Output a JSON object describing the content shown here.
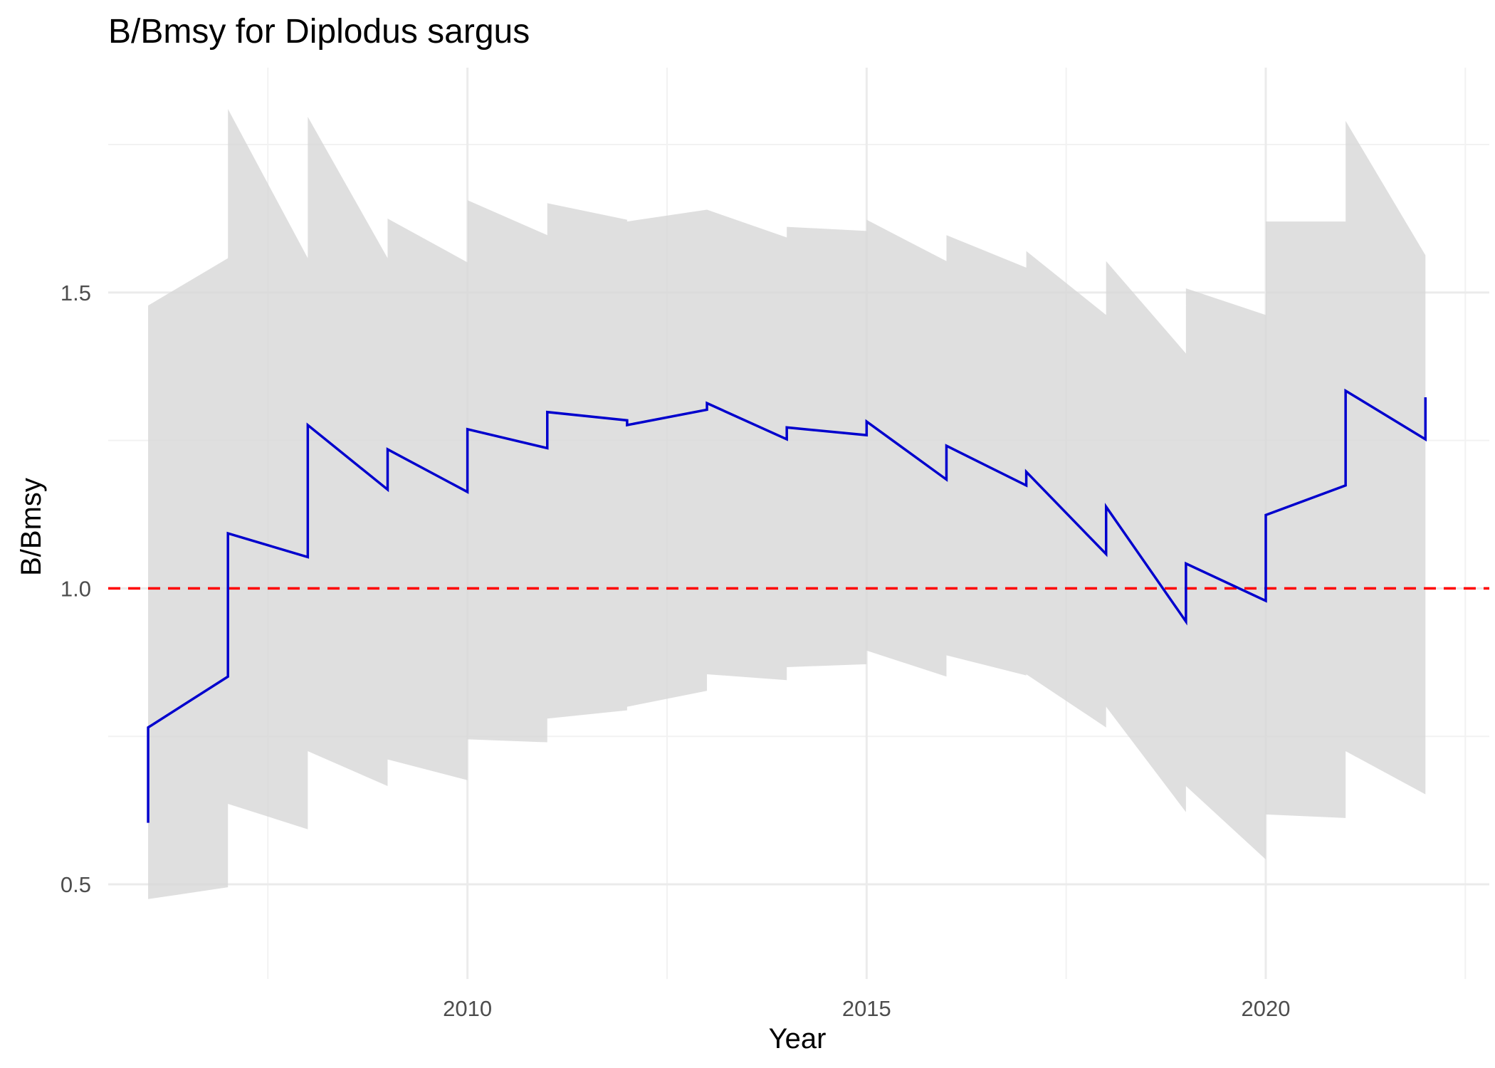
{
  "chart_data": {
    "type": "line",
    "title": "B/Bmsy for Diplodus sargus",
    "xlabel": "Year",
    "ylabel": "B/Bmsy",
    "xlim": [
      2005.5,
      2022.8
    ],
    "ylim": [
      0.34,
      1.88
    ],
    "x_ticks": [
      2010,
      2015,
      2020
    ],
    "x_tick_labels": [
      "2010",
      "2015",
      "2020"
    ],
    "y_ticks": [
      0.5,
      1.0,
      1.5
    ],
    "y_tick_labels": [
      "0.5",
      "1.0",
      "1.5"
    ],
    "grid": true,
    "legend": "none",
    "colors": {
      "line": "#0000cd",
      "band": "#d6d6d6",
      "reference": "#ff0000"
    },
    "reference_line": {
      "y": 1.0,
      "style": "dashed"
    },
    "series": [
      {
        "kind": "line",
        "x": [
          2006,
          2006,
          2007,
          2007,
          2008,
          2008,
          2009,
          2009,
          2010,
          2010,
          2011,
          2011,
          2012,
          2012,
          2013,
          2013,
          2014,
          2014,
          2015,
          2015,
          2016,
          2016,
          2017,
          2017,
          2018,
          2018,
          2019,
          2019,
          2020,
          2020,
          2021,
          2021,
          2022,
          2022
        ],
        "y": [
          0.604,
          0.765,
          0.851,
          1.093,
          1.053,
          1.276,
          1.167,
          1.235,
          1.163,
          1.269,
          1.237,
          1.298,
          1.284,
          1.276,
          1.302,
          1.313,
          1.252,
          1.272,
          1.259,
          1.282,
          1.184,
          1.241,
          1.174,
          1.197,
          1.058,
          1.138,
          0.944,
          1.042,
          0.979,
          1.124,
          1.174,
          1.334,
          1.252,
          1.323
        ]
      },
      {
        "kind": "band",
        "x": [
          2006,
          2007,
          2007,
          2008,
          2008,
          2009,
          2009,
          2010,
          2010,
          2011,
          2011,
          2012,
          2012,
          2013,
          2013,
          2014,
          2014,
          2015,
          2015,
          2016,
          2016,
          2017,
          2017,
          2018,
          2018,
          2019,
          2019,
          2020,
          2020,
          2021,
          2021,
          2022
        ],
        "upper": [
          1.478,
          1.558,
          1.81,
          1.558,
          1.797,
          1.558,
          1.625,
          1.551,
          1.656,
          1.597,
          1.651,
          1.623,
          1.62,
          1.64,
          1.64,
          1.593,
          1.611,
          1.604,
          1.623,
          1.553,
          1.597,
          1.542,
          1.57,
          1.462,
          1.553,
          1.397,
          1.507,
          1.462,
          1.62,
          1.62,
          1.79,
          1.563
        ],
        "lower": [
          0.475,
          0.495,
          0.636,
          0.593,
          0.725,
          0.666,
          0.711,
          0.676,
          0.745,
          0.74,
          0.78,
          0.794,
          0.8,
          0.827,
          0.855,
          0.845,
          0.867,
          0.872,
          0.895,
          0.851,
          0.887,
          0.853,
          0.855,
          0.765,
          0.8,
          0.622,
          0.666,
          0.542,
          0.618,
          0.612,
          0.725,
          0.652
        ]
      }
    ]
  }
}
